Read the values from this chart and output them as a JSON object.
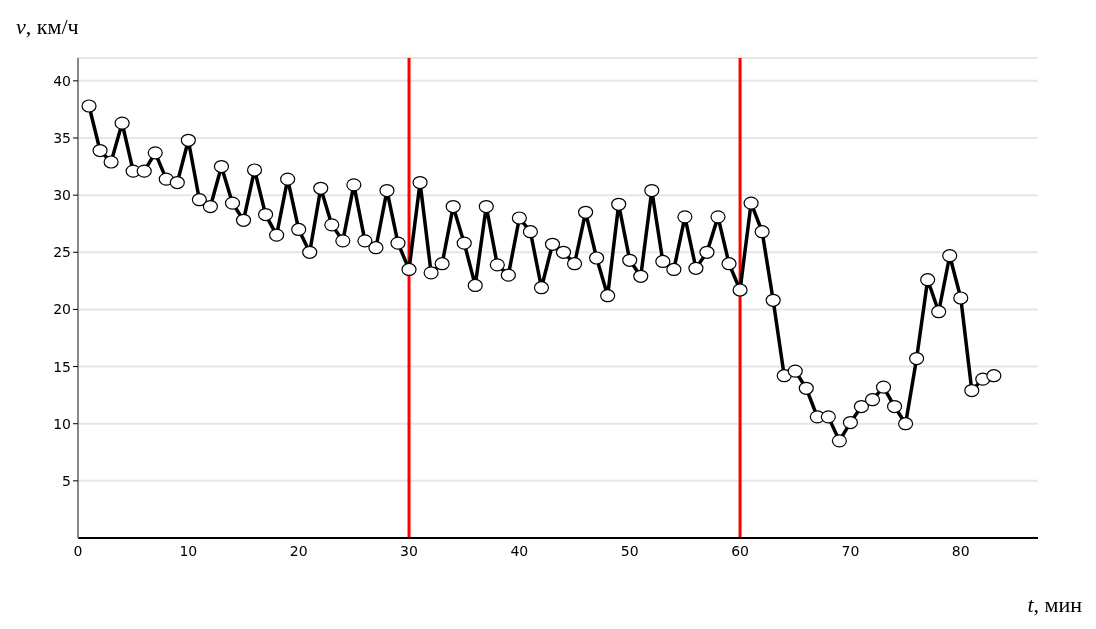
{
  "chart_data": {
    "type": "line",
    "xlabel": "t, мин",
    "ylabel": "v, км/ч",
    "x": [
      1,
      2,
      3,
      4,
      5,
      6,
      7,
      8,
      9,
      10,
      11,
      12,
      13,
      14,
      15,
      16,
      17,
      18,
      19,
      20,
      21,
      22,
      23,
      24,
      25,
      26,
      27,
      28,
      29,
      30,
      31,
      32,
      33,
      34,
      35,
      36,
      37,
      38,
      39,
      40,
      41,
      42,
      43,
      44,
      45,
      46,
      47,
      48,
      49,
      50,
      51,
      52,
      53,
      54,
      55,
      56,
      57,
      58,
      59,
      60,
      61,
      62,
      63,
      64,
      65,
      66,
      67,
      68,
      69,
      70,
      71,
      72,
      73,
      74,
      75,
      76,
      77,
      78,
      79,
      80,
      81,
      82,
      83
    ],
    "series": [
      {
        "color": "#000000",
        "values": [
          37.8,
          33.9,
          32.9,
          36.3,
          32.1,
          32.1,
          33.7,
          31.4,
          31.1,
          34.8,
          29.6,
          29.0,
          32.5,
          29.3,
          27.8,
          32.2,
          28.3,
          26.5,
          31.4,
          27.0,
          25.0,
          30.6,
          27.4,
          26.0,
          30.9,
          26.0,
          25.4,
          30.4,
          25.8,
          23.5,
          31.1,
          23.2,
          24.0,
          29.0,
          25.8,
          22.1,
          29.0,
          23.9,
          23.0,
          28.0,
          26.8,
          21.9,
          25.7,
          25.0,
          24.0,
          28.5,
          24.5,
          21.2,
          29.2,
          24.3,
          22.9,
          30.4,
          24.2,
          23.5,
          28.1,
          23.6,
          25.0,
          28.1,
          24.0,
          21.7,
          29.3,
          26.8,
          20.8,
          14.2,
          14.6,
          13.1,
          10.6,
          10.6,
          8.5,
          10.1,
          11.5,
          12.1,
          13.2,
          11.5,
          10.0,
          15.7,
          22.6,
          19.8,
          24.7,
          21.0,
          12.9,
          13.9,
          14.2
        ]
      }
    ],
    "xlim": [
      0,
      87
    ],
    "xticks": [
      0,
      10,
      20,
      30,
      40,
      50,
      60,
      70,
      80
    ],
    "ylim": [
      0,
      42
    ],
    "yticks": [
      5,
      10,
      15,
      20,
      25,
      30,
      35,
      40
    ],
    "grid": "y",
    "marker": "circle",
    "line_style": "solid",
    "ref_lines": [
      {
        "axis": "x",
        "value": 30,
        "color": "#ff0000"
      },
      {
        "axis": "x",
        "value": 60,
        "color": "#ff0000"
      }
    ]
  }
}
